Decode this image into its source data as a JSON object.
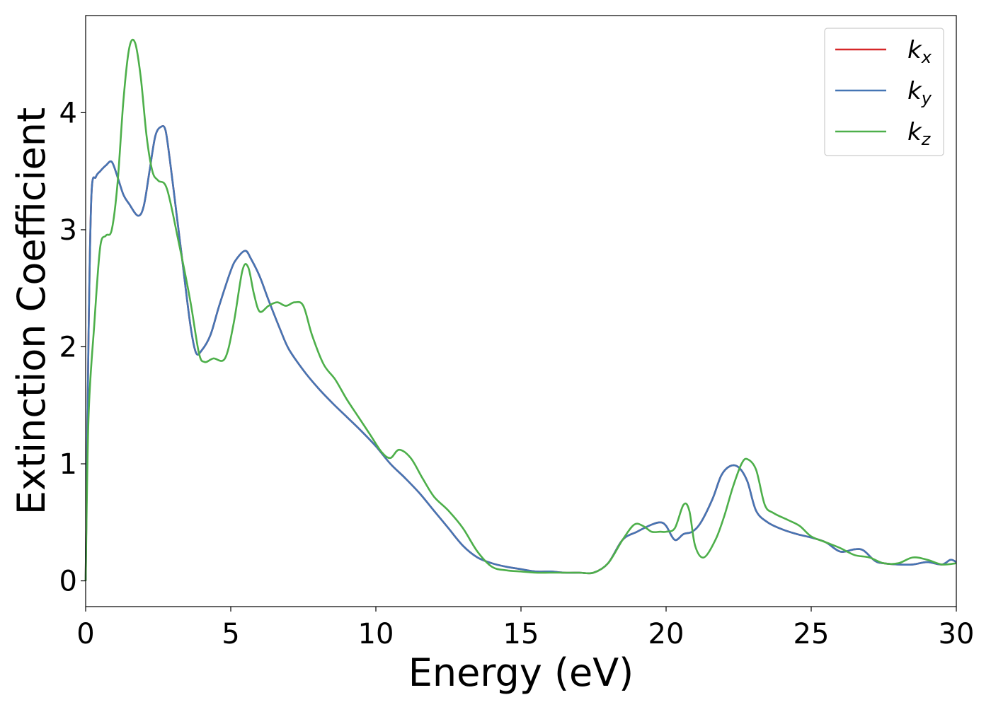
{
  "chart_data": {
    "type": "line",
    "xlabel": "Energy (eV)",
    "ylabel": "Extinction Coefficient",
    "xlim": [
      0,
      30
    ],
    "ylim": [
      -0.22,
      4.83
    ],
    "xticks": [
      0,
      5,
      10,
      15,
      20,
      25,
      30
    ],
    "yticks": [
      0,
      1,
      2,
      3,
      4
    ],
    "grid": false,
    "legend_position": "top-right",
    "series": [
      {
        "name": "k_x",
        "legend_base": "k",
        "legend_sub": "x",
        "color": "#d62728",
        "x": [
          0,
          0.1,
          0.2,
          0.35,
          0.5,
          0.7,
          0.9,
          1.1,
          1.3,
          1.5,
          1.8,
          2.0,
          2.2,
          2.4,
          2.6,
          2.75,
          2.9,
          3.1,
          3.3,
          3.6,
          3.8,
          4.0,
          4.3,
          4.6,
          5.0,
          5.2,
          5.5,
          5.7,
          6.0,
          6.3,
          6.7,
          7.0,
          7.5,
          8.0,
          8.5,
          9.0,
          9.5,
          10.0,
          10.5,
          11.0,
          11.5,
          12.0,
          12.5,
          13.0,
          13.5,
          14.0,
          14.5,
          15.0,
          15.5,
          16.0,
          16.5,
          17.0,
          17.5,
          18.0,
          18.5,
          19.0,
          19.5,
          19.8,
          20.0,
          20.3,
          20.6,
          20.9,
          21.2,
          21.6,
          21.9,
          22.2,
          22.5,
          22.8,
          23.1,
          23.5,
          24.0,
          24.5,
          25.0,
          25.5,
          26.0,
          26.5,
          26.8,
          27.2,
          27.5,
          28.0,
          28.5,
          29.0,
          29.5,
          29.8,
          30.0
        ],
        "values": [
          0,
          2.1,
          3.3,
          3.45,
          3.5,
          3.55,
          3.58,
          3.45,
          3.3,
          3.22,
          3.12,
          3.2,
          3.5,
          3.8,
          3.88,
          3.85,
          3.6,
          3.2,
          2.8,
          2.2,
          1.95,
          1.97,
          2.1,
          2.35,
          2.65,
          2.75,
          2.82,
          2.75,
          2.6,
          2.4,
          2.15,
          1.98,
          1.8,
          1.65,
          1.52,
          1.4,
          1.28,
          1.15,
          1.0,
          0.88,
          0.75,
          0.6,
          0.45,
          0.3,
          0.2,
          0.15,
          0.12,
          0.1,
          0.08,
          0.08,
          0.07,
          0.07,
          0.07,
          0.15,
          0.35,
          0.42,
          0.48,
          0.5,
          0.47,
          0.35,
          0.4,
          0.42,
          0.5,
          0.7,
          0.9,
          0.98,
          0.97,
          0.85,
          0.6,
          0.5,
          0.44,
          0.4,
          0.37,
          0.33,
          0.25,
          0.27,
          0.26,
          0.17,
          0.15,
          0.14,
          0.14,
          0.16,
          0.14,
          0.18,
          0.16
        ]
      },
      {
        "name": "k_y",
        "legend_base": "k",
        "legend_sub": "y",
        "color": "#4575b4",
        "x": [
          0,
          0.1,
          0.2,
          0.35,
          0.5,
          0.7,
          0.9,
          1.1,
          1.3,
          1.5,
          1.8,
          2.0,
          2.2,
          2.4,
          2.6,
          2.75,
          2.9,
          3.1,
          3.3,
          3.6,
          3.8,
          4.0,
          4.3,
          4.6,
          5.0,
          5.2,
          5.5,
          5.7,
          6.0,
          6.3,
          6.7,
          7.0,
          7.5,
          8.0,
          8.5,
          9.0,
          9.5,
          10.0,
          10.5,
          11.0,
          11.5,
          12.0,
          12.5,
          13.0,
          13.5,
          14.0,
          14.5,
          15.0,
          15.5,
          16.0,
          16.5,
          17.0,
          17.5,
          18.0,
          18.5,
          19.0,
          19.5,
          19.8,
          20.0,
          20.3,
          20.6,
          20.9,
          21.2,
          21.6,
          21.9,
          22.2,
          22.5,
          22.8,
          23.1,
          23.5,
          24.0,
          24.5,
          25.0,
          25.5,
          26.0,
          26.5,
          26.8,
          27.2,
          27.5,
          28.0,
          28.5,
          29.0,
          29.5,
          29.8,
          30.0
        ],
        "values": [
          0,
          2.1,
          3.3,
          3.45,
          3.5,
          3.55,
          3.58,
          3.45,
          3.3,
          3.22,
          3.12,
          3.2,
          3.5,
          3.8,
          3.88,
          3.85,
          3.6,
          3.2,
          2.8,
          2.2,
          1.95,
          1.97,
          2.1,
          2.35,
          2.65,
          2.75,
          2.82,
          2.75,
          2.6,
          2.4,
          2.15,
          1.98,
          1.8,
          1.65,
          1.52,
          1.4,
          1.28,
          1.15,
          1.0,
          0.88,
          0.75,
          0.6,
          0.45,
          0.3,
          0.2,
          0.15,
          0.12,
          0.1,
          0.08,
          0.08,
          0.07,
          0.07,
          0.07,
          0.15,
          0.35,
          0.42,
          0.48,
          0.5,
          0.47,
          0.35,
          0.4,
          0.42,
          0.5,
          0.7,
          0.9,
          0.98,
          0.97,
          0.85,
          0.6,
          0.5,
          0.44,
          0.4,
          0.37,
          0.33,
          0.25,
          0.27,
          0.26,
          0.17,
          0.15,
          0.14,
          0.14,
          0.16,
          0.14,
          0.18,
          0.16
        ]
      },
      {
        "name": "k_z",
        "legend_base": "k",
        "legend_sub": "z",
        "color": "#4daf4a",
        "x": [
          0,
          0.1,
          0.3,
          0.5,
          0.7,
          0.9,
          1.1,
          1.3,
          1.5,
          1.7,
          1.9,
          2.1,
          2.3,
          2.5,
          2.8,
          3.2,
          3.6,
          3.9,
          4.1,
          4.4,
          4.8,
          5.1,
          5.4,
          5.6,
          5.8,
          6.0,
          6.3,
          6.6,
          6.9,
          7.2,
          7.5,
          7.8,
          8.2,
          8.6,
          9.0,
          9.4,
          9.8,
          10.2,
          10.5,
          10.8,
          11.2,
          11.6,
          12.0,
          12.5,
          13.0,
          13.5,
          14.0,
          14.5,
          15.0,
          15.5,
          16.0,
          16.5,
          17.0,
          17.5,
          18.0,
          18.5,
          18.9,
          19.2,
          19.5,
          19.8,
          20.0,
          20.3,
          20.6,
          20.8,
          21.0,
          21.3,
          21.7,
          22.0,
          22.3,
          22.6,
          22.8,
          23.1,
          23.4,
          23.7,
          24.2,
          24.6,
          25.0,
          25.5,
          26.0,
          26.5,
          27.0,
          27.5,
          28.0,
          28.5,
          29.0,
          29.5,
          30.0
        ],
        "values": [
          0,
          1.4,
          2.2,
          2.85,
          2.95,
          3.0,
          3.4,
          4.1,
          4.55,
          4.6,
          4.3,
          3.8,
          3.5,
          3.42,
          3.35,
          2.9,
          2.4,
          1.95,
          1.87,
          1.9,
          1.9,
          2.2,
          2.65,
          2.68,
          2.45,
          2.3,
          2.35,
          2.38,
          2.35,
          2.38,
          2.35,
          2.1,
          1.85,
          1.72,
          1.55,
          1.4,
          1.25,
          1.1,
          1.05,
          1.12,
          1.05,
          0.88,
          0.72,
          0.6,
          0.45,
          0.25,
          0.12,
          0.09,
          0.08,
          0.07,
          0.07,
          0.07,
          0.07,
          0.07,
          0.15,
          0.35,
          0.48,
          0.47,
          0.42,
          0.42,
          0.42,
          0.45,
          0.65,
          0.6,
          0.3,
          0.2,
          0.35,
          0.55,
          0.8,
          1.0,
          1.04,
          0.95,
          0.65,
          0.58,
          0.52,
          0.47,
          0.38,
          0.33,
          0.28,
          0.22,
          0.2,
          0.15,
          0.15,
          0.2,
          0.18,
          0.14,
          0.15
        ]
      }
    ]
  }
}
